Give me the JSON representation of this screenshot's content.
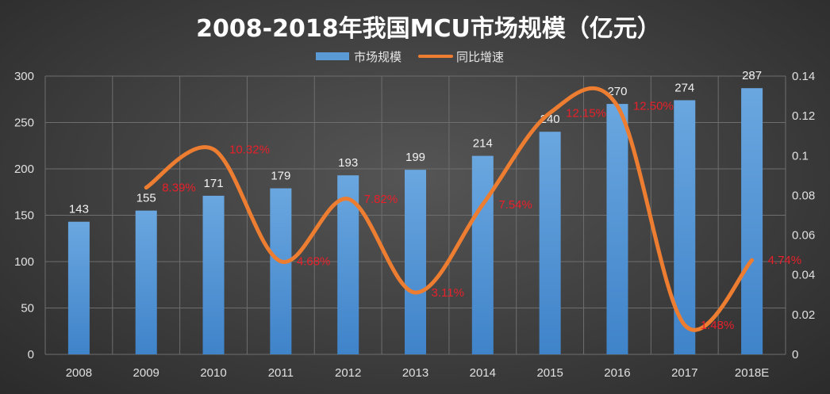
{
  "chart_data": {
    "type": "bar",
    "title": "2008-2018年我国MCU市场规模（亿元）",
    "categories": [
      "2008",
      "2009",
      "2010",
      "2011",
      "2012",
      "2013",
      "2014",
      "2015",
      "2016",
      "2017",
      "2018E"
    ],
    "series": [
      {
        "name": "市场规模",
        "type": "bar",
        "axis": "left",
        "color": "#5b9bd5",
        "values": [
          143,
          155,
          171,
          179,
          193,
          199,
          214,
          240,
          270,
          274,
          287
        ],
        "labels": [
          "143",
          "155",
          "171",
          "179",
          "193",
          "199",
          "214",
          "240",
          "270",
          "274",
          "287"
        ]
      },
      {
        "name": "同比增速",
        "type": "line",
        "smooth": true,
        "axis": "right",
        "color": "#ed7d31",
        "values": [
          null,
          0.0839,
          0.1032,
          0.0468,
          0.0782,
          0.0311,
          0.0754,
          0.1215,
          0.125,
          0.0148,
          0.0474
        ],
        "labels": [
          "",
          "8.39%",
          "10.32%",
          "4.68%",
          "7.82%",
          "3.11%",
          "7.54%",
          "12.15%",
          "12.50%",
          "1.48%",
          "4.74%"
        ],
        "label_color": "#e8202a"
      }
    ],
    "y_left": {
      "ylim": [
        0,
        300
      ],
      "ticks": [
        "0",
        "50",
        "100",
        "150",
        "200",
        "250",
        "300"
      ]
    },
    "y_right": {
      "ylim": [
        0,
        0.14
      ],
      "ticks": [
        "0",
        "0.02",
        "0.04",
        "0.06",
        "0.08",
        "0.1",
        "0.12",
        "0.14"
      ]
    },
    "grid": true,
    "legend": "top-center"
  }
}
